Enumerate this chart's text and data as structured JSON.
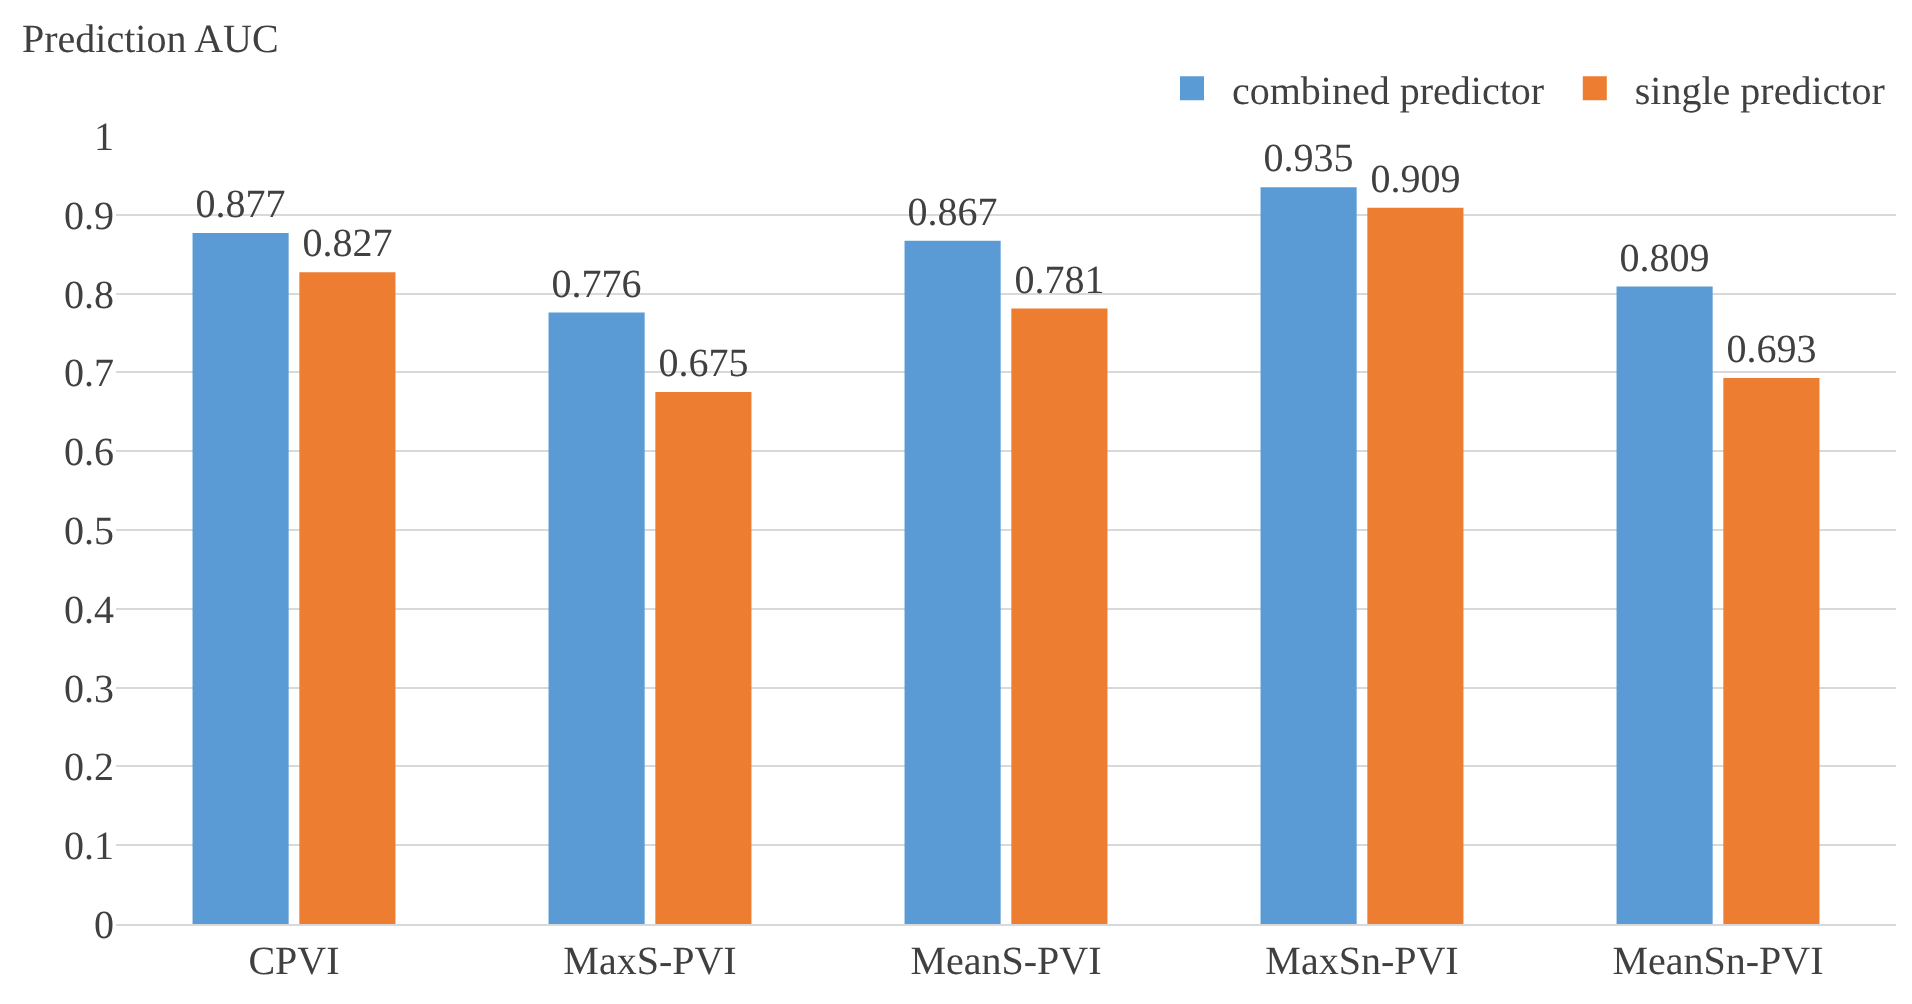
{
  "chart_data": {
    "type": "bar",
    "ylabel": "Prediction AUC",
    "categories": [
      "CPVI",
      "MaxS-PVI",
      "MeanS-PVI",
      "MaxSn-PVI",
      "MeanSn-PVI"
    ],
    "series": [
      {
        "name": "combined predictor",
        "color": "#5b9bd5",
        "values": [
          0.877,
          0.776,
          0.867,
          0.935,
          0.809
        ]
      },
      {
        "name": "single predictor",
        "color": "#ed7d31",
        "values": [
          0.827,
          0.675,
          0.781,
          0.909,
          0.693
        ]
      }
    ],
    "ylim": [
      0,
      1
    ],
    "yticks": [
      0,
      0.1,
      0.2,
      0.3,
      0.4,
      0.5,
      0.6,
      0.7,
      0.8,
      0.9,
      1
    ],
    "grid": "y",
    "legend": "top right",
    "data_labels": true
  }
}
